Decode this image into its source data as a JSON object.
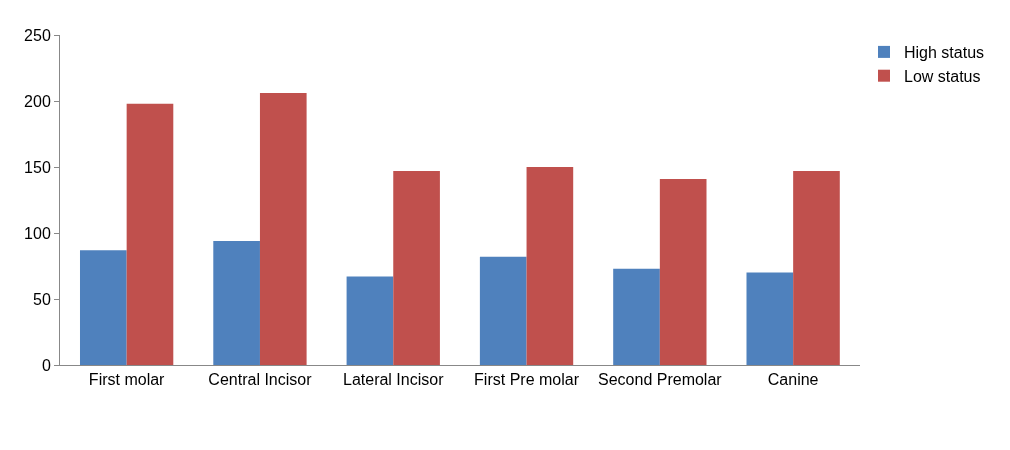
{
  "chart_data": {
    "type": "bar",
    "categories": [
      "First molar",
      "Central Incisor",
      "Lateral Incisor",
      "First Pre molar",
      "Second Premolar",
      "Canine"
    ],
    "series": [
      {
        "name": "High status",
        "color": "#4f81bd",
        "values": [
          87,
          94,
          67,
          82,
          73,
          70
        ]
      },
      {
        "name": "Low status",
        "color": "#c0504d",
        "values": [
          198,
          206,
          147,
          150,
          141,
          147
        ]
      }
    ],
    "ylim": [
      0,
      250
    ],
    "yticks": [
      0,
      50,
      100,
      150,
      200,
      250
    ],
    "grid": false,
    "legend": "top right"
  }
}
